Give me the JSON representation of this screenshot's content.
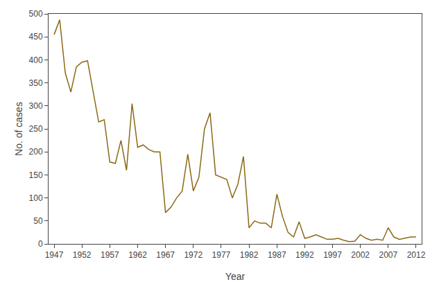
{
  "chart_data": {
    "type": "line",
    "x": [
      1947,
      1948,
      1949,
      1950,
      1951,
      1952,
      1953,
      1954,
      1955,
      1956,
      1957,
      1958,
      1959,
      1960,
      1961,
      1962,
      1963,
      1964,
      1965,
      1966,
      1967,
      1968,
      1969,
      1970,
      1971,
      1972,
      1973,
      1974,
      1975,
      1976,
      1977,
      1978,
      1979,
      1980,
      1981,
      1982,
      1983,
      1984,
      1985,
      1986,
      1987,
      1988,
      1989,
      1990,
      1991,
      1992,
      1993,
      1994,
      1995,
      1996,
      1997,
      1998,
      1999,
      2000,
      2001,
      2002,
      2003,
      2004,
      2005,
      2006,
      2007,
      2008,
      2009,
      2010,
      2011,
      2012
    ],
    "values": [
      455,
      487,
      372,
      330,
      385,
      395,
      398,
      330,
      265,
      270,
      178,
      175,
      225,
      160,
      305,
      210,
      215,
      205,
      200,
      200,
      68,
      80,
      100,
      115,
      195,
      115,
      145,
      250,
      285,
      150,
      145,
      140,
      100,
      130,
      190,
      35,
      50,
      45,
      45,
      35,
      108,
      60,
      25,
      15,
      48,
      12,
      15,
      20,
      15,
      10,
      10,
      12,
      8,
      5,
      6,
      20,
      12,
      8,
      10,
      8,
      35,
      15,
      10,
      12,
      15,
      15
    ],
    "color": "#8B6914",
    "xlabel": "Year",
    "ylabel": "No. of cases",
    "xlim": [
      1946,
      2013
    ],
    "ylim": [
      0,
      500
    ],
    "xticks": [
      1947,
      1952,
      1957,
      1962,
      1967,
      1972,
      1977,
      1982,
      1987,
      1992,
      1997,
      2002,
      2007,
      2012
    ],
    "yticks": [
      0,
      50,
      100,
      150,
      200,
      250,
      300,
      350,
      400,
      450,
      500
    ],
    "grid": false
  }
}
